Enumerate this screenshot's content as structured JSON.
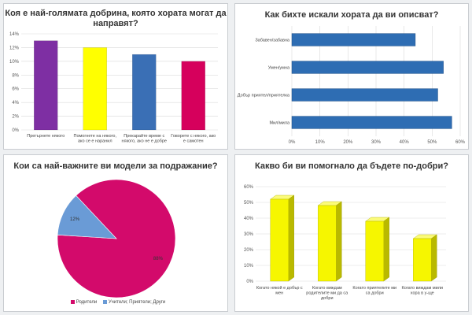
{
  "chart_data": [
    {
      "type": "bar",
      "title": "Коя е най-голямата добрина, която хората могат да направят?",
      "categories": [
        "Прегърнете някого",
        "Помогнете на някого, ако се е наранил",
        "Прекарайте време с някого, ако не е добре",
        "Говорете с някого, ако е самотен"
      ],
      "values": [
        13,
        12,
        11,
        10
      ],
      "colors": [
        "#7e2fa3",
        "#ffff00",
        "#3a6fb5",
        "#d6005c"
      ],
      "ylim": [
        0,
        14
      ],
      "yticks": [
        "0%",
        "2%",
        "4%",
        "6%",
        "8%",
        "10%",
        "12%",
        "14%"
      ],
      "grid": true
    },
    {
      "type": "bar",
      "orientation": "horizontal",
      "title": "Как бихте искали хората да ви описват?",
      "categories": [
        "Забавен/забавна",
        "Умен/умна",
        "Добър приятел/приятелка",
        "Мил/мила"
      ],
      "values": [
        44,
        54,
        52,
        57
      ],
      "color": "#2e6db3",
      "xlim": [
        0,
        60
      ],
      "xticks": [
        "0%",
        "10%",
        "20%",
        "30%",
        "40%",
        "50%",
        "60%"
      ],
      "grid": true
    },
    {
      "type": "pie",
      "title": "Кои са най-важните ви модели за подражание?",
      "labels": [
        "Родители",
        "Учители; Приятели; Други"
      ],
      "values": [
        88,
        12
      ],
      "value_labels": [
        "88%",
        "12%"
      ],
      "colors": [
        "#d30a6b",
        "#6a9bd6"
      ],
      "legend": "bottom"
    },
    {
      "type": "bar",
      "style": "3d",
      "title": "Какво би ви помогнало да бъдете по-добри?",
      "categories": [
        "Когато някой е добър с мен",
        "Когато виждам родителите ми да са добри",
        "Когато приятелите ми са добри",
        "Когато виждам мили хора в у-ще"
      ],
      "values": [
        52,
        48,
        38,
        27
      ],
      "color": "#f6f600",
      "ylim": [
        0,
        60
      ],
      "yticks": [
        "0%",
        "10%",
        "20%",
        "30%",
        "40%",
        "50%",
        "60%"
      ],
      "grid": true
    }
  ]
}
